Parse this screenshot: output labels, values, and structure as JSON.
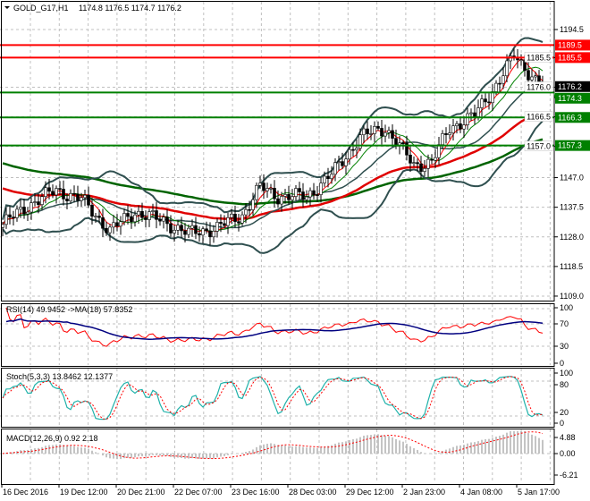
{
  "chart_data": {
    "type": "candlestick",
    "header": {
      "symbol": "GOLD_G17,H1",
      "ohlc": "1174.8 1176.5 1174.7 1176.2"
    },
    "price_axis": {
      "ticks": [
        "1194.5",
        "1185.5",
        "1176.0",
        "1166.5",
        "1157.0",
        "1147.0",
        "1137.5",
        "1128.0",
        "1118.5",
        "1109.0"
      ],
      "range": [
        1109.0,
        1194.5
      ]
    },
    "current_price": "1176.2",
    "levels": [
      {
        "value": 1189.5,
        "label": "1189.5",
        "color": "#ff0000"
      },
      {
        "value": 1185.5,
        "label": "1185.5",
        "color": "#ff0000"
      },
      {
        "value": 1174.3,
        "label": "1174.3",
        "color": "#008000"
      },
      {
        "value": 1166.3,
        "label": "1166.3",
        "color": "#008000"
      },
      {
        "value": 1157.3,
        "label": "1157.3",
        "color": "#008000"
      }
    ],
    "price_path": [
      [
        0,
        1132
      ],
      [
        7,
        1138
      ],
      [
        15,
        1143
      ],
      [
        22,
        1140
      ],
      [
        30,
        1130
      ],
      [
        37,
        1136
      ],
      [
        45,
        1133
      ],
      [
        52,
        1129
      ],
      [
        60,
        1131
      ],
      [
        67,
        1135
      ],
      [
        72,
        1144
      ],
      [
        77,
        1141
      ],
      [
        85,
        1141
      ],
      [
        92,
        1148
      ],
      [
        100,
        1160
      ],
      [
        107,
        1163
      ],
      [
        115,
        1151
      ],
      [
        120,
        1152
      ],
      [
        125,
        1163
      ],
      [
        132,
        1167
      ],
      [
        137,
        1175
      ],
      [
        143,
        1186
      ],
      [
        147,
        1181
      ],
      [
        151,
        1176.2
      ]
    ],
    "time_axis": [
      "16 Dec 2016",
      "19 Dec 12:00",
      "20 Dec 21:00",
      "22 Dec 07:00",
      "23 Dec 16:00",
      "28 Dec 03:00",
      "29 Dec 12:00",
      "2 Jan 23:00",
      "4 Jan 08:00",
      "5 Jan 17:00"
    ],
    "rsi": {
      "label": "RSI(14) 49.9452  ->MA(18) 57.8352",
      "ticks": [
        "100",
        "70",
        "30",
        "0"
      ]
    },
    "stoch": {
      "label": "Stoch(5,3,3) 13.8462 12.1377",
      "ticks": [
        "100",
        "80",
        "20",
        "0"
      ]
    },
    "macd": {
      "label": "MACD(12,26,9) 0.92 2.18",
      "ticks": [
        "4.88",
        "0.00",
        "-6.21"
      ]
    }
  }
}
